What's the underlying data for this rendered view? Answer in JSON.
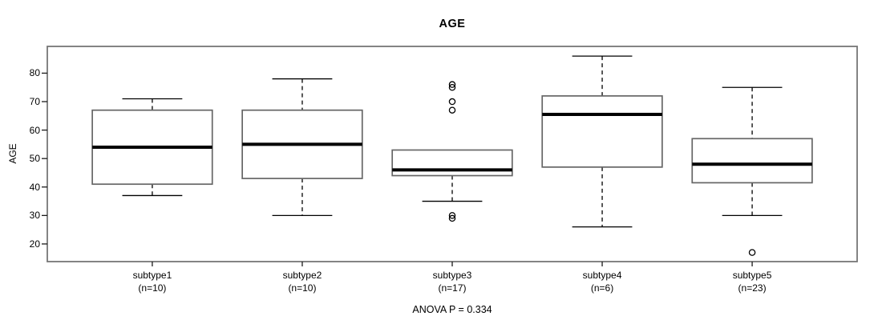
{
  "title": "AGE",
  "chart_data": {
    "type": "boxplot",
    "title": "AGE",
    "ylabel": "AGE",
    "caption": "ANOVA P = 0.334",
    "y_ticks": [
      20,
      30,
      40,
      50,
      60,
      70,
      80
    ],
    "ylim": [
      13.8,
      89.4
    ],
    "xlim": [
      0.3,
      5.7
    ],
    "grid": false,
    "box_width_units": 0.8,
    "cap_width_units": 0.4,
    "groups": [
      {
        "label": "subtype1",
        "sublabel": "(n=10)",
        "n": 10,
        "whisker_low": 37,
        "q1": 41,
        "median": 54,
        "q3": 67,
        "whisker_high": 71,
        "outliers": []
      },
      {
        "label": "subtype2",
        "sublabel": "(n=10)",
        "n": 10,
        "whisker_low": 30,
        "q1": 43,
        "median": 55,
        "q3": 67,
        "whisker_high": 78,
        "outliers": []
      },
      {
        "label": "subtype3",
        "sublabel": "(n=17)",
        "n": 17,
        "whisker_low": 35,
        "q1": 44,
        "median": 46,
        "q3": 53,
        "whisker_high": 53,
        "outliers": [
          76,
          75,
          70,
          67,
          30,
          29
        ]
      },
      {
        "label": "subtype4",
        "sublabel": "(n=6)",
        "n": 6,
        "whisker_low": 26,
        "q1": 47,
        "median": 65.5,
        "q3": 72,
        "whisker_high": 86,
        "outliers": []
      },
      {
        "label": "subtype5",
        "sublabel": "(n=23)",
        "n": 23,
        "whisker_low": 30,
        "q1": 41.5,
        "median": 48,
        "q3": 57,
        "whisker_high": 75,
        "outliers": [
          17
        ]
      }
    ]
  },
  "colors": {
    "background": "#ffffff",
    "frame": "#777777",
    "box_border": "#666666",
    "box_fill": "#ffffff",
    "median": "#000000",
    "whisker": "#000000",
    "tick": "#1a1a1a",
    "text": "#000000"
  }
}
